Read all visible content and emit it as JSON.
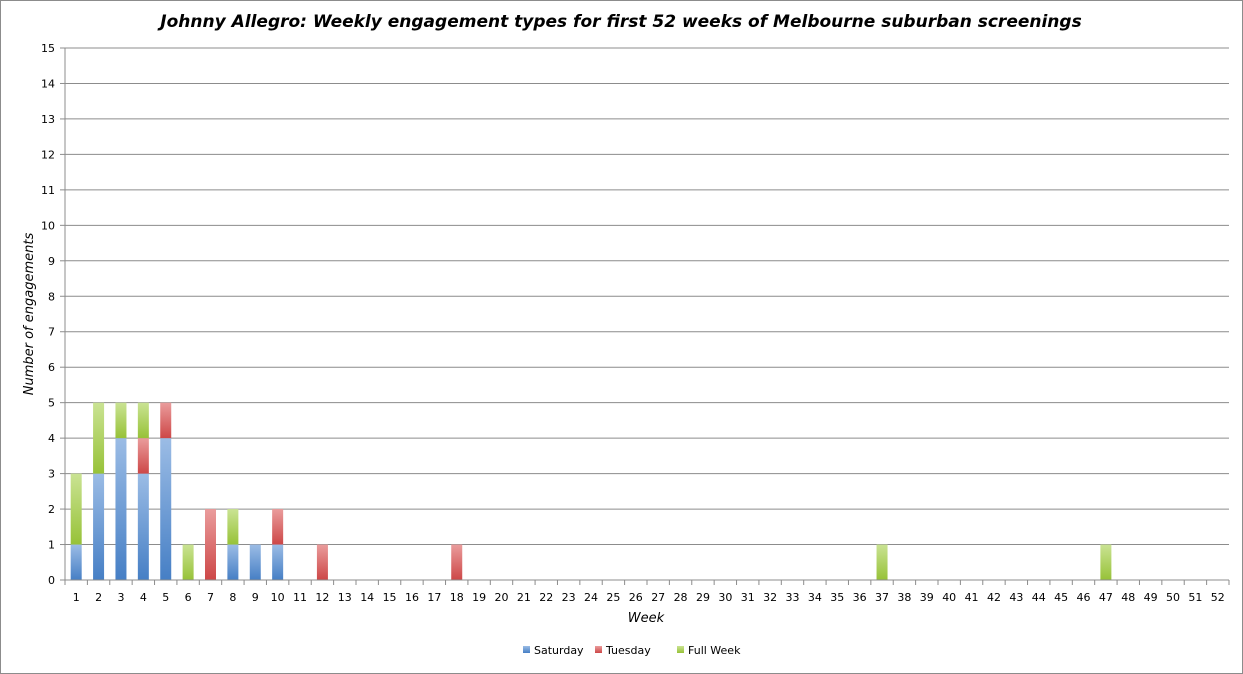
{
  "chart_data": {
    "type": "bar",
    "stacked": true,
    "title": "Johnny Allegro: Weekly engagement types for first 52 weeks of Melbourne suburban screenings",
    "xlabel": "Week",
    "ylabel": "Number of engagements",
    "ylim": [
      0,
      15
    ],
    "yticks": [
      "0",
      "1",
      "2",
      "3",
      "4",
      "5",
      "6",
      "7",
      "8",
      "9",
      "10",
      "11",
      "12",
      "13",
      "14",
      "15"
    ],
    "grid": true,
    "legend_position": "bottom",
    "categories": [
      "1",
      "2",
      "3",
      "4",
      "5",
      "6",
      "7",
      "8",
      "9",
      "10",
      "11",
      "12",
      "13",
      "14",
      "15",
      "16",
      "17",
      "18",
      "19",
      "20",
      "21",
      "22",
      "23",
      "24",
      "25",
      "26",
      "27",
      "28",
      "29",
      "30",
      "31",
      "32",
      "33",
      "34",
      "35",
      "36",
      "37",
      "38",
      "39",
      "40",
      "41",
      "42",
      "43",
      "44",
      "45",
      "46",
      "47",
      "48",
      "49",
      "50",
      "51",
      "52"
    ],
    "series": [
      {
        "name": "Saturday",
        "color": "#4a86cf",
        "values": [
          1,
          3,
          4,
          3,
          4,
          0,
          0,
          1,
          1,
          1,
          0,
          0,
          0,
          0,
          0,
          0,
          0,
          0,
          0,
          0,
          0,
          0,
          0,
          0,
          0,
          0,
          0,
          0,
          0,
          0,
          0,
          0,
          0,
          0,
          0,
          0,
          0,
          0,
          0,
          0,
          0,
          0,
          0,
          0,
          0,
          0,
          0,
          0,
          0,
          0,
          0,
          0
        ]
      },
      {
        "name": "Tuesday",
        "color": "#d84b4b",
        "values": [
          0,
          0,
          0,
          1,
          1,
          0,
          2,
          0,
          0,
          1,
          0,
          1,
          0,
          0,
          0,
          0,
          0,
          1,
          0,
          0,
          0,
          0,
          0,
          0,
          0,
          0,
          0,
          0,
          0,
          0,
          0,
          0,
          0,
          0,
          0,
          0,
          0,
          0,
          0,
          0,
          0,
          0,
          0,
          0,
          0,
          0,
          0,
          0,
          0,
          0,
          0,
          0
        ]
      },
      {
        "name": "Full Week",
        "color": "#9fcc3b",
        "values": [
          2,
          2,
          1,
          1,
          0,
          1,
          0,
          1,
          0,
          0,
          0,
          0,
          0,
          0,
          0,
          0,
          0,
          0,
          0,
          0,
          0,
          0,
          0,
          0,
          0,
          0,
          0,
          0,
          0,
          0,
          0,
          0,
          0,
          0,
          0,
          0,
          1,
          0,
          0,
          0,
          0,
          0,
          0,
          0,
          0,
          0,
          1,
          0,
          0,
          0,
          0,
          0
        ]
      }
    ]
  }
}
